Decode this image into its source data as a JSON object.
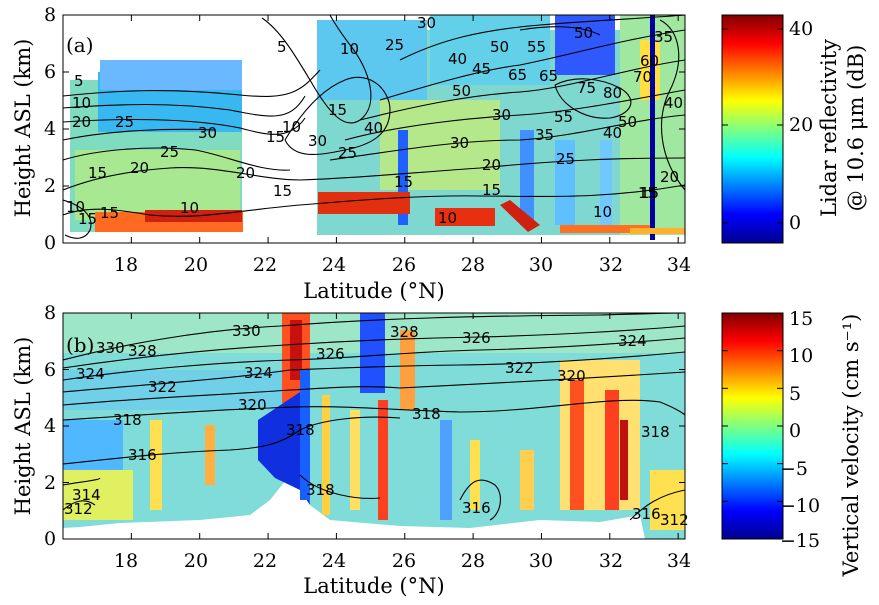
{
  "chart_data": [
    {
      "type": "heatmap",
      "panel_label": "(a)",
      "xlabel": "Latitude (°N)",
      "ylabel": "Height ASL (km)",
      "xlim": [
        16,
        34.2
      ],
      "ylim": [
        0,
        8
      ],
      "xticks": [
        "18",
        "20",
        "22",
        "24",
        "26",
        "28",
        "30",
        "32",
        "34"
      ],
      "yticks": [
        "0",
        "2",
        "4",
        "6",
        "8"
      ],
      "colorbar": {
        "label": "Lidar reflectivity @ 10.6 μm (dB)",
        "label_line1": "Lidar reflectivity",
        "label_line2": "@ 10.6 μm (dB)",
        "range": [
          -5,
          42
        ],
        "ticks": [
          "0",
          "20",
          "40"
        ],
        "colormap": "jet"
      },
      "contour_labels": [
        "5",
        "10",
        "20",
        "25",
        "30",
        "25",
        "20",
        "15",
        "15",
        "10",
        "15",
        "5",
        "10",
        "15",
        "30",
        "10",
        "15",
        "25",
        "40",
        "25",
        "30",
        "40",
        "45",
        "50",
        "55",
        "65",
        "50",
        "30",
        "20",
        "15",
        "10",
        "15",
        "65",
        "75",
        "80",
        "55",
        "35",
        "25",
        "15",
        "10",
        "50",
        "60",
        "70",
        "40",
        "35",
        "50",
        "20",
        "15",
        "40",
        "30",
        "20",
        "10",
        "15"
      ],
      "grid": false
    },
    {
      "type": "heatmap",
      "panel_label": "(b)",
      "xlabel": "Latitude (°N)",
      "ylabel": "Height ASL (km)",
      "xlim": [
        16,
        34.2
      ],
      "ylim": [
        0,
        8
      ],
      "xticks": [
        "18",
        "20",
        "22",
        "24",
        "26",
        "28",
        "30",
        "32",
        "34"
      ],
      "yticks": [
        "0",
        "2",
        "4",
        "6",
        "8"
      ],
      "colorbar": {
        "label": "Vertical velocity (cm s⁻¹)",
        "range": [
          -15,
          15
        ],
        "ticks": [
          "15",
          "10",
          "5",
          "0",
          "−5",
          "−10",
          "−15"
        ],
        "colormap": "jet"
      },
      "contour_labels": [
        "330",
        "330",
        "328",
        "324",
        "322",
        "324",
        "320",
        "318",
        "318",
        "316",
        "326",
        "328",
        "326",
        "324",
        "322",
        "320",
        "318",
        "318",
        "316",
        "318",
        "316",
        "314",
        "312",
        "312"
      ],
      "grid": false
    }
  ]
}
